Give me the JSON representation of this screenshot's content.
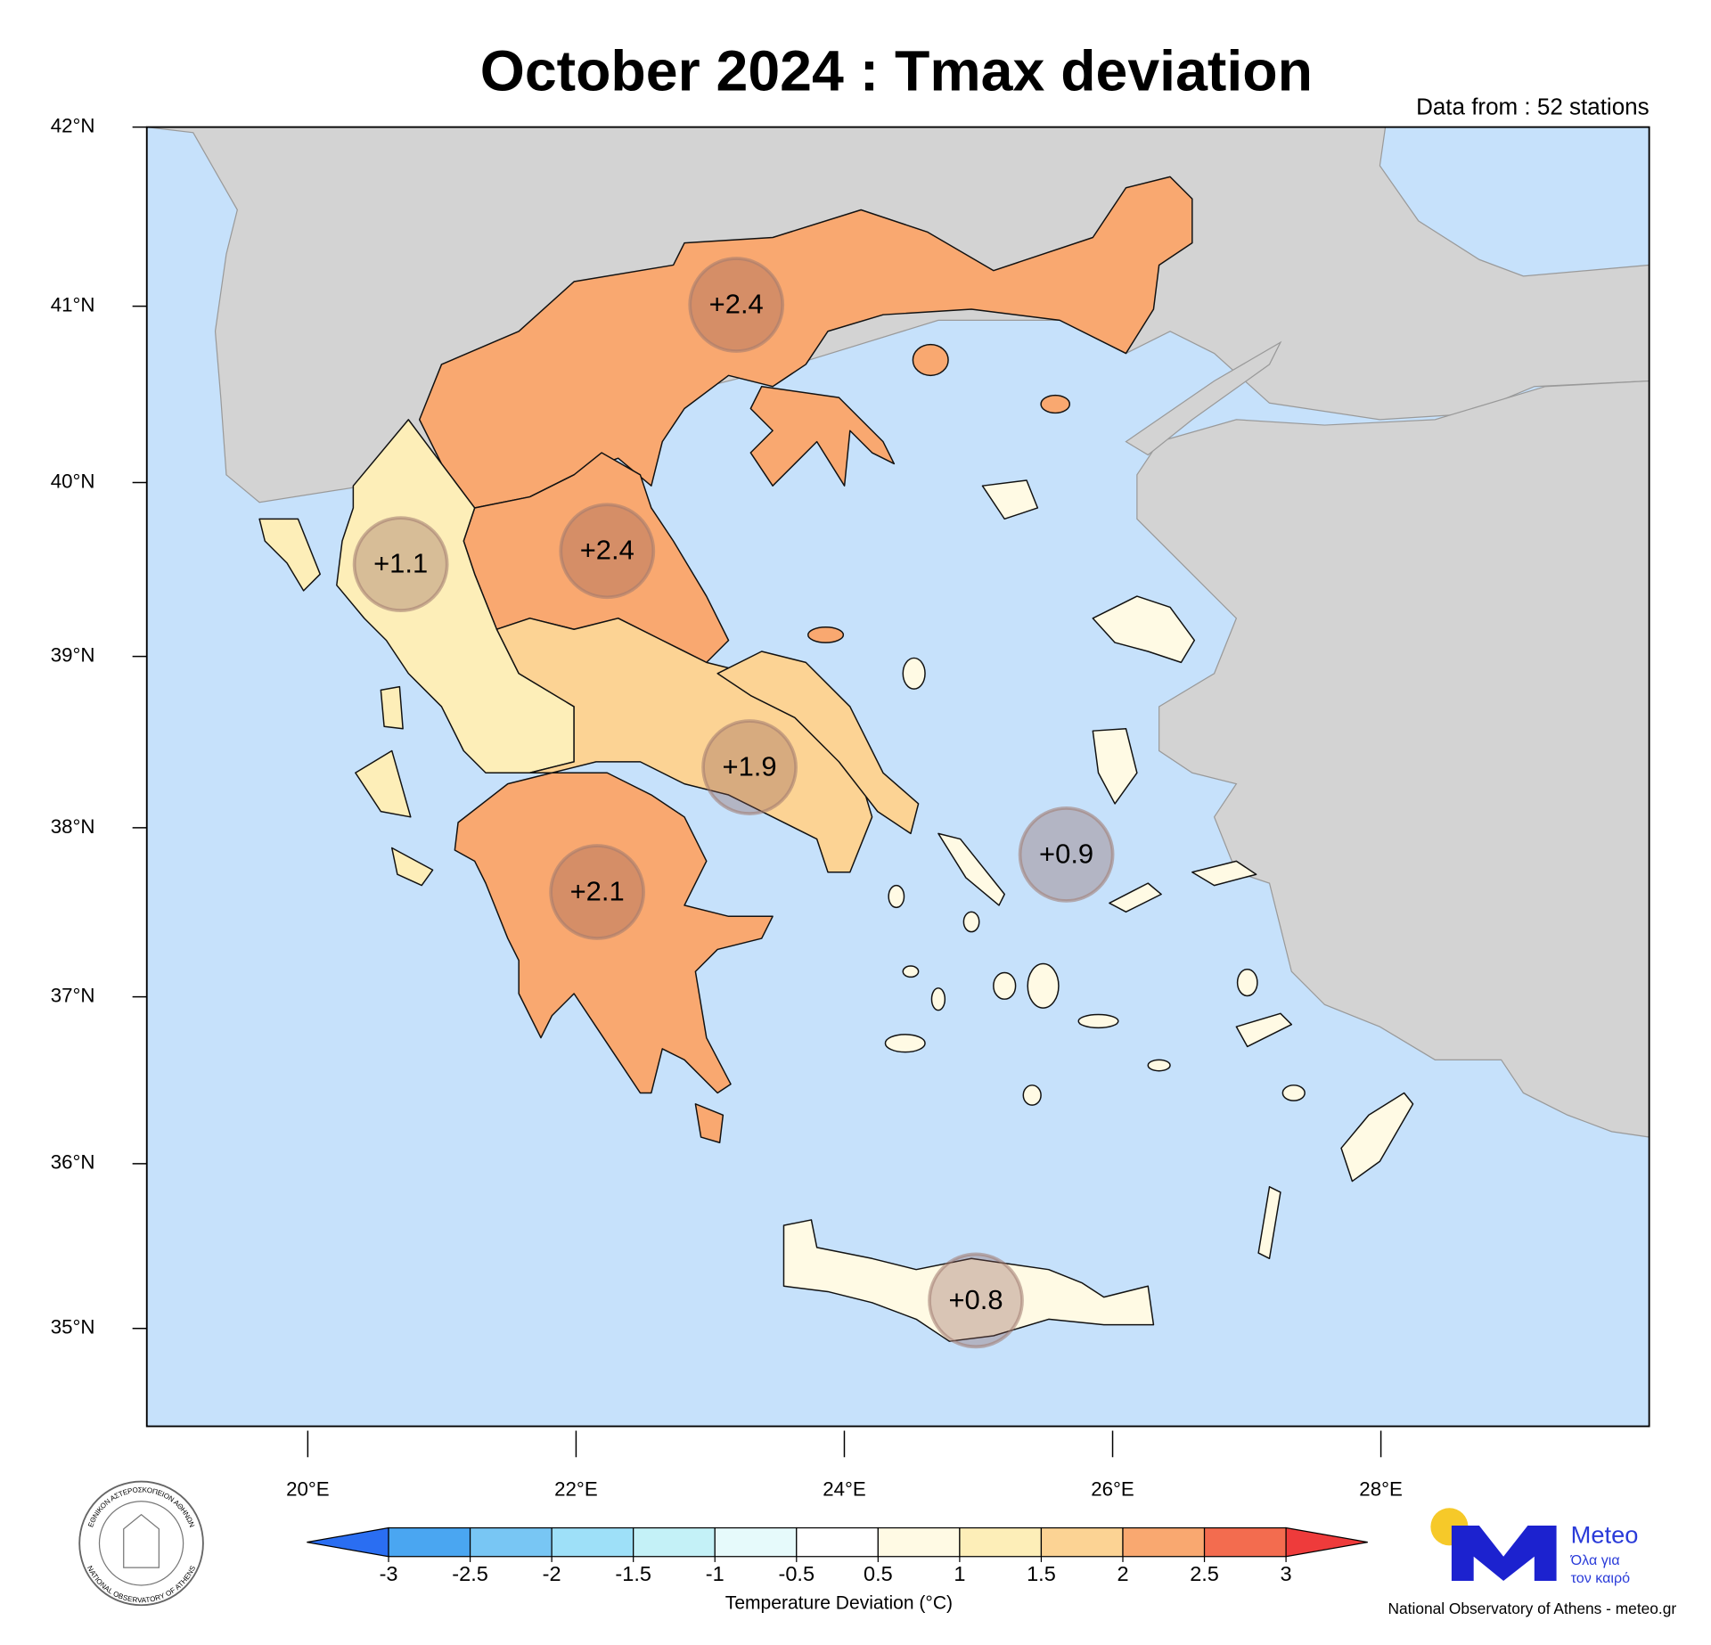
{
  "chart_data": {
    "type": "map",
    "title": "October 2024 : Tmax deviation",
    "subtitle": "Data from : 52 stations",
    "values": [
      2.4,
      1.1,
      2.4,
      1.9,
      2.1,
      0.9,
      0.8
    ],
    "value_labels": [
      "+2.4",
      "+1.1",
      "+2.4",
      "+1.9",
      "+2.1",
      "+0.9",
      "+0.8"
    ],
    "xlim": [
      18.8,
      30
    ],
    "xticks": [
      {
        "value": 20,
        "label": "20°E"
      },
      {
        "value": 22,
        "label": "22°E"
      },
      {
        "value": 24,
        "label": "24°E"
      },
      {
        "value": 26,
        "label": "26°E"
      },
      {
        "value": 28,
        "label": "28°E"
      }
    ],
    "ylim": [
      34.4,
      42
    ],
    "yticks": [
      {
        "value": 35,
        "label": "35°N"
      },
      {
        "value": 36,
        "label": "36°N"
      },
      {
        "value": 37,
        "label": "37°N"
      },
      {
        "value": 38,
        "label": "38°N"
      },
      {
        "value": 39,
        "label": "39°N"
      },
      {
        "value": 40,
        "label": "40°N"
      },
      {
        "value": 41,
        "label": "41°N"
      },
      {
        "value": 42,
        "label": "42°N"
      }
    ],
    "projection": "mercator",
    "sea_color": "#c6e1fb",
    "colorbar": {
      "label": "Temperature Deviation (°C)",
      "levels": [
        -3,
        -2.5,
        -2,
        -1.5,
        -1,
        -0.5,
        0.5,
        1,
        1.5,
        2,
        2.5,
        3
      ],
      "colors": [
        "#2a6ef2",
        "#4aa6f1",
        "#78c6f4",
        "#9ee0f8",
        "#c4f1f7",
        "#e6fafb",
        "#ffffff",
        "#fffae4",
        "#fdeeb8",
        "#fcd394",
        "#f9a870",
        "#f36c4f",
        "#ee3b3b"
      ]
    }
  },
  "seal": [
    "ΕΘΝΙΚΟΝ ΑΣΤΕΡΟΣΚΟΠΕΙΟΝ ΑΘΗΝΩΝ",
    "NATIONAL OBSERVATORY OF ATHENS"
  ],
  "logo": {
    "name": "Meteo",
    "tagline": [
      "Όλα για",
      "τον καιρό"
    ]
  },
  "credit": "National Observatory of Athens - meteo.gr"
}
